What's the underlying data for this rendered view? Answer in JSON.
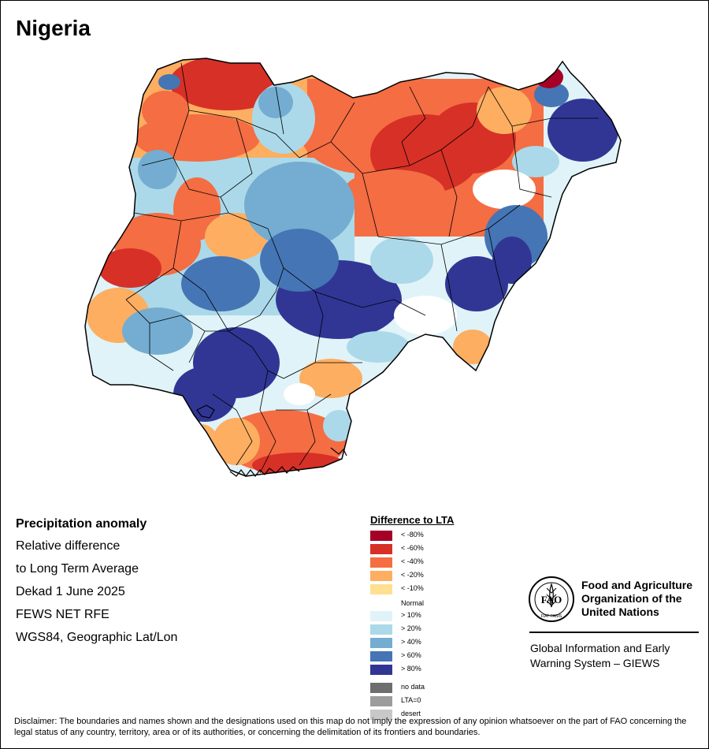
{
  "title": "Nigeria",
  "info": {
    "heading": "Precipitation anomaly",
    "lines": [
      "Relative difference",
      "to Long Term Average",
      "Dekad 1 June 2025",
      "FEWS NET RFE",
      "WGS84, Geographic Lat/Lon"
    ]
  },
  "legend": {
    "title": "Difference to LTA",
    "items": [
      {
        "label": "< -80%",
        "color": "#a50026"
      },
      {
        "label": "< -60%",
        "color": "#d73027"
      },
      {
        "label": "< -40%",
        "color": "#f46d43"
      },
      {
        "label": "< -20%",
        "color": "#fdae61"
      },
      {
        "label": "< -10%",
        "color": "#fee090"
      },
      {
        "label": "Normal",
        "color": "#ffffff"
      },
      {
        "label": "> 10%",
        "color": "#e0f3f8"
      },
      {
        "label": "> 20%",
        "color": "#abd9e9"
      },
      {
        "label": "> 40%",
        "color": "#74add1"
      },
      {
        "label": "> 60%",
        "color": "#4575b4"
      },
      {
        "label": "> 80%",
        "color": "#313695"
      }
    ],
    "extra": [
      {
        "label": "no data",
        "color": "#6e6e6e"
      },
      {
        "label": "LTA=0",
        "color": "#9c9c9c"
      },
      {
        "label": "desert",
        "color": "#c8c8c8"
      }
    ]
  },
  "fao": {
    "name_lines": [
      "Food and Agriculture",
      "Organization of the",
      "United Nations"
    ],
    "emblem_text": "FAO",
    "motto": "FIAT PANIS"
  },
  "giews": {
    "lines": [
      "Global Information and Early",
      "Warning System – GIEWS"
    ]
  },
  "disclaimer": "Disclaimer: The boundaries and names shown and the designations used on this map do not imply the expression of any opinion whatsoever on the part of FAO concerning the legal status of any country, territory, area or of its authorities, or concerning the delimitation of its frontiers and boundaries."
}
